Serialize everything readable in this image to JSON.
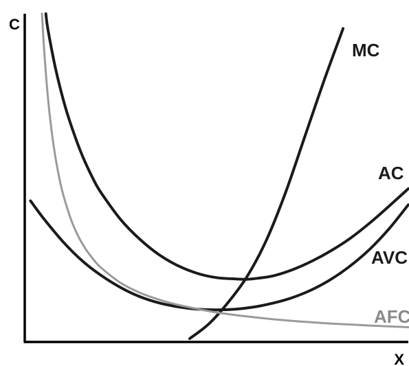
{
  "chart_data": {
    "type": "line",
    "title": "",
    "xlabel": "X",
    "ylabel": "C",
    "xlim": [
      0,
      100
    ],
    "ylim": [
      0,
      100
    ],
    "grid": false,
    "legend": "none",
    "series": [
      {
        "name": "MC",
        "color": "#1a1a1a",
        "x": [
          43,
          48,
          53,
          58,
          63,
          68,
          73,
          78,
          83
        ],
        "y": [
          1,
          5.5,
          12,
          20,
          31,
          45.5,
          62.5,
          79.5,
          95.5
        ]
      },
      {
        "name": "AC",
        "color": "#1a1a1a",
        "x": [
          5.5,
          6,
          8,
          10,
          12,
          15,
          18,
          20,
          25,
          30,
          35,
          40,
          45,
          50,
          55,
          58,
          60,
          65,
          70,
          75,
          80,
          85,
          90,
          95,
          100
        ],
        "y": [
          100,
          95.5,
          83.5,
          74,
          66.3,
          56.8,
          49.3,
          45.3,
          37.3,
          31.3,
          26.6,
          23.2,
          20.9,
          19.6,
          19.2,
          19.1,
          19.3,
          20.2,
          22.1,
          24.7,
          27.9,
          31.7,
          36.3,
          41.4,
          46.7
        ]
      },
      {
        "name": "AVC",
        "color": "#1a1a1a",
        "x": [
          1.5,
          5,
          10,
          15,
          20,
          25,
          30,
          35,
          40,
          45,
          50,
          55,
          60,
          65,
          70,
          75,
          80,
          85,
          90,
          95,
          100
        ],
        "y": [
          43,
          37.5,
          30.5,
          24.7,
          20.2,
          16.6,
          13.8,
          11.9,
          10.7,
          10,
          9.8,
          10,
          10.7,
          11.9,
          13.6,
          16,
          19.2,
          23.3,
          28.3,
          34.5,
          41.8
        ]
      },
      {
        "name": "AFC",
        "color": "#9a9a9a",
        "x": [
          4.5,
          5,
          6,
          7,
          8,
          9,
          10,
          12,
          14,
          16,
          18,
          20,
          25,
          30,
          35,
          40,
          50,
          60,
          70,
          80,
          90,
          100
        ],
        "y": [
          100,
          90,
          75,
          64.3,
          56.3,
          50,
          45,
          37.5,
          32.1,
          28.1,
          25,
          22.5,
          18,
          15,
          12.9,
          11.3,
          9,
          7.5,
          6.4,
          5.6,
          5,
          4.5
        ]
      }
    ],
    "annotations": [
      {
        "text": "MC",
        "series": "MC",
        "color": "#1a1a1a"
      },
      {
        "text": "AC",
        "series": "AC",
        "color": "#1a1a1a"
      },
      {
        "text": "AVC",
        "series": "AVC",
        "color": "#1a1a1a"
      },
      {
        "text": "AFC",
        "series": "AFC",
        "color": "#9a9a9a"
      }
    ]
  }
}
